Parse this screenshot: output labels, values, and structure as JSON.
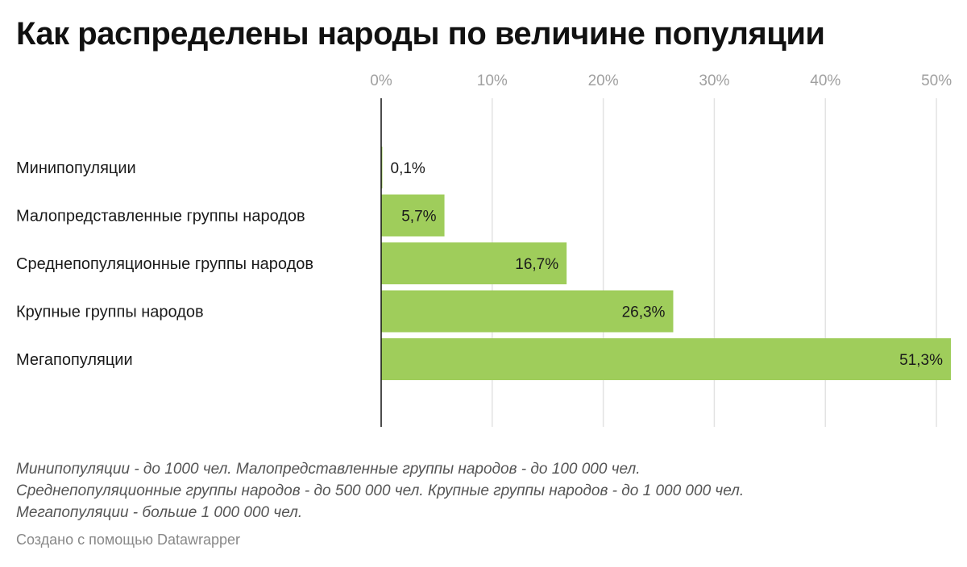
{
  "chart_data": {
    "type": "bar",
    "orientation": "horizontal",
    "title": "Как распределены народы по величине популяции",
    "categories": [
      "Минипопуляции",
      "Малопредставленные группы народов",
      "Среднепопуляционные группы народов",
      "Крупные группы народов",
      "Мегапопуляции"
    ],
    "values": [
      0.1,
      5.7,
      16.7,
      26.3,
      51.3
    ],
    "value_labels": [
      "0,1%",
      "5,7%",
      "16,7%",
      "26,3%",
      "51,3%"
    ],
    "xlim": [
      0,
      51.3
    ],
    "x_ticks": [
      0,
      10,
      20,
      30,
      40,
      50
    ],
    "x_tick_labels": [
      "0%",
      "10%",
      "20%",
      "30%",
      "40%",
      "50%"
    ],
    "xlabel": "",
    "ylabel": "",
    "grid": true,
    "colors": {
      "bar": "#9fcd5b",
      "grid": "#e3e3e3",
      "axis": "#111111",
      "tick_label": "#a0a0a0",
      "label": "#1a1a1a"
    }
  },
  "notes": [
    "Минипопуляции - до 1000 чел. Малопредставленные группы народов - до 100 000 чел.",
    "Среднепопуляционные группы народов - до 500 000 чел. Крупные группы народов - до 1 000 000 чел.",
    "Мегапопуляции - больше 1 000 000 чел."
  ],
  "credit": "Создано с помощью Datawrapper"
}
